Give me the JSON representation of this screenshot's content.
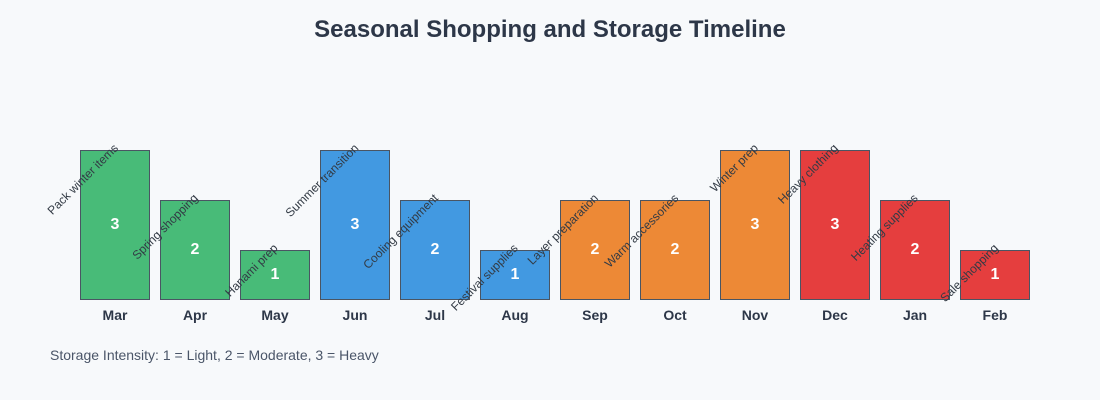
{
  "title": "Seasonal Shopping and Storage Timeline",
  "note": "Storage Intensity: 1 = Light, 2 = Moderate, 3 = Heavy",
  "colors": {
    "spring": "#48bb78",
    "summer": "#4299e1",
    "autumn": "#ed8936",
    "winter": "#e53e3e"
  },
  "chart_data": {
    "type": "bar",
    "title": "Seasonal Shopping and Storage Timeline",
    "xlabel": "",
    "ylabel": "Storage Intensity",
    "ylim": [
      0,
      3
    ],
    "grid": false,
    "legend": "none",
    "categories": [
      "Mar",
      "Apr",
      "May",
      "Jun",
      "Jul",
      "Aug",
      "Sep",
      "Oct",
      "Nov",
      "Dec",
      "Jan",
      "Feb"
    ],
    "values": [
      3,
      2,
      1,
      3,
      2,
      1,
      2,
      2,
      3,
      3,
      2,
      1
    ],
    "annotations": [
      "Pack winter items",
      "Spring shopping",
      "Hanami prep",
      "Summer transition",
      "Cooling equipment",
      "Festival supplies",
      "Layer preparation",
      "Warm accessories",
      "Winter prep",
      "Heavy clothing",
      "Heating supplies",
      "Sale shopping"
    ],
    "bar_colors": [
      "#48bb78",
      "#48bb78",
      "#48bb78",
      "#4299e1",
      "#4299e1",
      "#4299e1",
      "#ed8936",
      "#ed8936",
      "#ed8936",
      "#e53e3e",
      "#e53e3e",
      "#e53e3e"
    ],
    "footnote": "Storage Intensity: 1 = Light, 2 = Moderate, 3 = Heavy"
  }
}
